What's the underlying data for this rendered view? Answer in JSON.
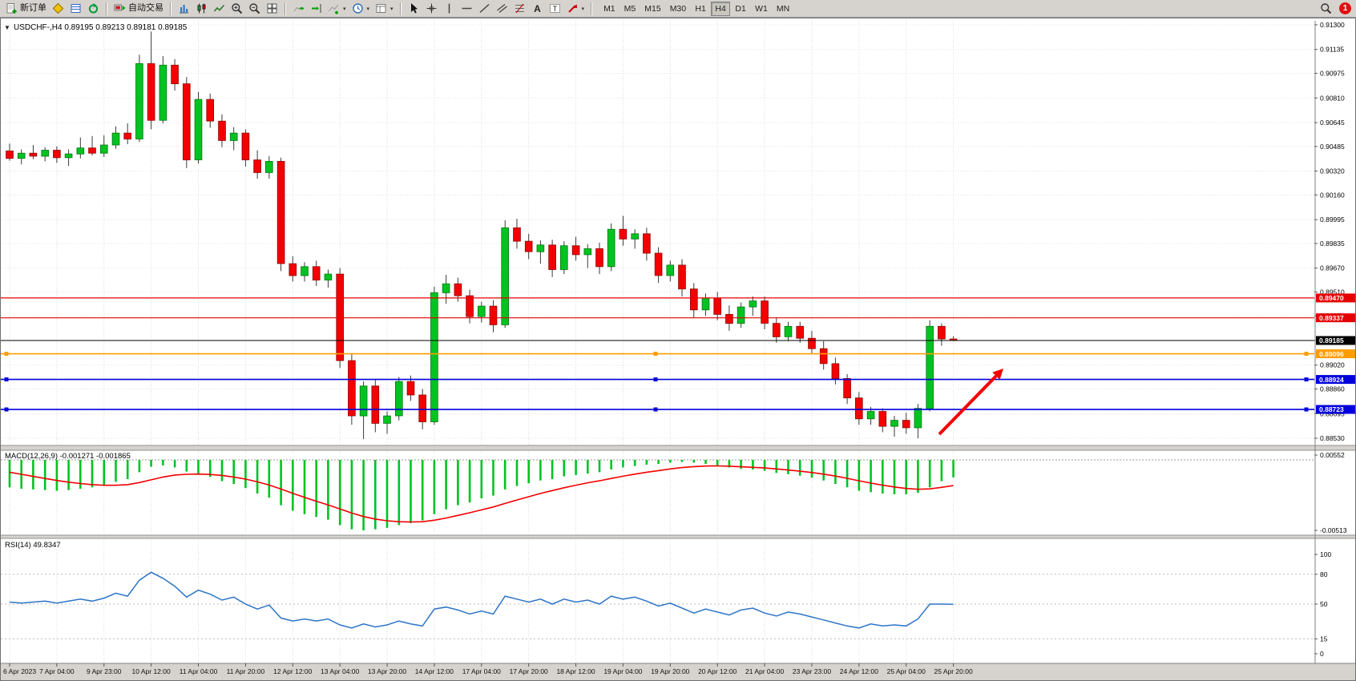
{
  "toolbar": {
    "new_order_label": "新订单",
    "autotrading_label": "自动交易",
    "timeframes": [
      "M1",
      "M5",
      "M15",
      "M30",
      "H1",
      "H4",
      "D1",
      "W1",
      "MN"
    ],
    "active_timeframe": "H4",
    "notification_count": "1",
    "dropdown_caret": "▾",
    "symbol_menu_icon": "▼"
  },
  "chart": {
    "symbol_header": "USDCHF-,H4  0.89195 0.89213 0.89181 0.89185",
    "macd_header": "MACD(12,26,9) -0.001271 -0.001865",
    "rsi_header": "RSI(14) 49.8347"
  },
  "chart_data": {
    "type": "candlestick",
    "symbol": "USDCHF-",
    "timeframe": "H4",
    "ohlc_readout": {
      "open": "0.89195",
      "high": "0.89213",
      "low": "0.89181",
      "close": "0.89185"
    },
    "colors": {
      "up": "#00C321",
      "up_border": "#00770f",
      "down": "#F40000",
      "down_border": "#8f0000",
      "wick": "#3a3a3a"
    },
    "price_axis_ticks": [
      "0.91300",
      "0.91135",
      "0.90975",
      "0.90810",
      "0.90645",
      "0.90485",
      "0.90320",
      "0.90160",
      "0.89995",
      "0.89835",
      "0.89670",
      "0.89510",
      "0.89350",
      "0.89185",
      "0.89020",
      "0.88860",
      "0.88695",
      "0.88530"
    ],
    "time_labels": [
      "6 Apr 2023",
      "7 Apr 04:00",
      "9 Apr 23:00",
      "10 Apr 12:00",
      "11 Apr 04:00",
      "11 Apr 20:00",
      "12 Apr 12:00",
      "13 Apr 04:00",
      "13 Apr 20:00",
      "14 Apr 12:00",
      "17 Apr 04:00",
      "17 Apr 20:00",
      "18 Apr 12:00",
      "19 Apr 04:00",
      "19 Apr 20:00",
      "20 Apr 12:00",
      "21 Apr 04:00",
      "23 Apr 23:00",
      "24 Apr 12:00",
      "25 Apr 04:00",
      "25 Apr 20:00"
    ],
    "candles": [
      [
        0.90455,
        0.90505,
        0.9039,
        0.90405
      ],
      [
        0.90405,
        0.90465,
        0.90365,
        0.9044
      ],
      [
        0.9044,
        0.90495,
        0.904,
        0.9042
      ],
      [
        0.9042,
        0.9048,
        0.90385,
        0.9046
      ],
      [
        0.9046,
        0.90485,
        0.90375,
        0.9041
      ],
      [
        0.9041,
        0.90465,
        0.90355,
        0.90435
      ],
      [
        0.90435,
        0.90545,
        0.90405,
        0.90475
      ],
      [
        0.90475,
        0.90555,
        0.90425,
        0.9044
      ],
      [
        0.9044,
        0.9056,
        0.90415,
        0.90495
      ],
      [
        0.90495,
        0.9062,
        0.9047,
        0.90575
      ],
      [
        0.90575,
        0.9064,
        0.905,
        0.90535
      ],
      [
        0.90535,
        0.911,
        0.90515,
        0.9104
      ],
      [
        0.9104,
        0.91255,
        0.906,
        0.9066
      ],
      [
        0.9066,
        0.9109,
        0.9064,
        0.9103
      ],
      [
        0.9103,
        0.9107,
        0.9086,
        0.90905
      ],
      [
        0.90905,
        0.9095,
        0.9034,
        0.90395
      ],
      [
        0.90395,
        0.9085,
        0.9037,
        0.908
      ],
      [
        0.908,
        0.9084,
        0.9061,
        0.90655
      ],
      [
        0.90655,
        0.907,
        0.9048,
        0.90525
      ],
      [
        0.90525,
        0.90615,
        0.9046,
        0.90575
      ],
      [
        0.90575,
        0.906,
        0.9035,
        0.90395
      ],
      [
        0.90395,
        0.9046,
        0.9027,
        0.9031
      ],
      [
        0.9031,
        0.9042,
        0.9027,
        0.90385
      ],
      [
        0.90385,
        0.9041,
        0.8965,
        0.897
      ],
      [
        0.897,
        0.8975,
        0.8958,
        0.8962
      ],
      [
        0.8962,
        0.8971,
        0.8958,
        0.8968
      ],
      [
        0.8968,
        0.8972,
        0.8955,
        0.8959
      ],
      [
        0.8959,
        0.8966,
        0.8954,
        0.8963
      ],
      [
        0.8963,
        0.8967,
        0.89,
        0.8905
      ],
      [
        0.8905,
        0.891,
        0.8862,
        0.8868
      ],
      [
        0.8868,
        0.8891,
        0.88525,
        0.8888
      ],
      [
        0.8888,
        0.8892,
        0.8857,
        0.8863
      ],
      [
        0.8863,
        0.8871,
        0.8856,
        0.8868
      ],
      [
        0.8868,
        0.8894,
        0.8865,
        0.8891
      ],
      [
        0.8891,
        0.8895,
        0.8878,
        0.8882
      ],
      [
        0.8882,
        0.8886,
        0.8859,
        0.8864
      ],
      [
        0.8864,
        0.89545,
        0.8862,
        0.89505
      ],
      [
        0.89505,
        0.89625,
        0.8943,
        0.89565
      ],
      [
        0.89565,
        0.89605,
        0.89445,
        0.89485
      ],
      [
        0.89485,
        0.89525,
        0.893,
        0.89345
      ],
      [
        0.89345,
        0.89445,
        0.89305,
        0.89415
      ],
      [
        0.89415,
        0.89455,
        0.8924,
        0.8929
      ],
      [
        0.8929,
        0.8999,
        0.8927,
        0.8994
      ],
      [
        0.8994,
        0.9,
        0.898,
        0.8985
      ],
      [
        0.8985,
        0.899,
        0.8973,
        0.8978
      ],
      [
        0.8978,
        0.89855,
        0.897,
        0.89825
      ],
      [
        0.89825,
        0.8986,
        0.8961,
        0.8966
      ],
      [
        0.8966,
        0.8985,
        0.8963,
        0.8982
      ],
      [
        0.8982,
        0.8988,
        0.8972,
        0.8976
      ],
      [
        0.8976,
        0.8983,
        0.8967,
        0.898
      ],
      [
        0.898,
        0.8984,
        0.8963,
        0.8968
      ],
      [
        0.8968,
        0.8997,
        0.8965,
        0.8993
      ],
      [
        0.8993,
        0.9002,
        0.8982,
        0.89865
      ],
      [
        0.89865,
        0.8993,
        0.898,
        0.899
      ],
      [
        0.899,
        0.8994,
        0.8972,
        0.8977
      ],
      [
        0.8977,
        0.8981,
        0.8957,
        0.8962
      ],
      [
        0.8962,
        0.8972,
        0.8958,
        0.8969
      ],
      [
        0.8969,
        0.8973,
        0.8948,
        0.8953
      ],
      [
        0.8953,
        0.8957,
        0.8934,
        0.8939
      ],
      [
        0.8939,
        0.895,
        0.8935,
        0.8947
      ],
      [
        0.8947,
        0.8951,
        0.8932,
        0.8936
      ],
      [
        0.8936,
        0.8942,
        0.8925,
        0.893
      ],
      [
        0.893,
        0.8944,
        0.8927,
        0.8941
      ],
      [
        0.8941,
        0.8948,
        0.8935,
        0.8945
      ],
      [
        0.8945,
        0.8948,
        0.8926,
        0.893
      ],
      [
        0.893,
        0.8934,
        0.8917,
        0.8921
      ],
      [
        0.8921,
        0.8931,
        0.8918,
        0.8928
      ],
      [
        0.8928,
        0.8931,
        0.8917,
        0.892
      ],
      [
        0.892,
        0.8925,
        0.891,
        0.8913
      ],
      [
        0.8913,
        0.8918,
        0.8899,
        0.8903
      ],
      [
        0.8903,
        0.8907,
        0.8889,
        0.8893
      ],
      [
        0.8893,
        0.8896,
        0.8876,
        0.888
      ],
      [
        0.888,
        0.8884,
        0.8862,
        0.8866
      ],
      [
        0.8866,
        0.8874,
        0.8862,
        0.8871
      ],
      [
        0.8871,
        0.8873,
        0.8857,
        0.8861
      ],
      [
        0.8861,
        0.8868,
        0.8854,
        0.8865
      ],
      [
        0.8865,
        0.887,
        0.8856,
        0.886
      ],
      [
        0.886,
        0.8876,
        0.8853,
        0.8873
      ],
      [
        0.8873,
        0.8932,
        0.8871,
        0.8928
      ],
      [
        0.8928,
        0.893,
        0.8915,
        0.89195
      ],
      [
        0.89195,
        0.89213,
        0.89181,
        0.89185
      ]
    ],
    "hlines": [
      {
        "name": "resistance-1",
        "label": "0.89470",
        "price": 0.8947,
        "color": "#E60000",
        "width": 1.2,
        "handles": false
      },
      {
        "name": "resistance-2",
        "label": "0.89337",
        "price": 0.89337,
        "color": "#E60000",
        "width": 1.2,
        "handles": false
      },
      {
        "name": "current-price",
        "label": "0.89185",
        "price": 0.89185,
        "color": "#000000",
        "width": 1,
        "handles": false
      },
      {
        "name": "orange-level",
        "label": "0.89096",
        "price": 0.89096,
        "color": "#FF9C00",
        "width": 1.6,
        "handles": true
      },
      {
        "name": "support-1",
        "label": "0.88924",
        "price": 0.88924,
        "color": "#0000DC",
        "width": 1.6,
        "handles": true
      },
      {
        "name": "support-2",
        "label": "0.88723",
        "price": 0.88723,
        "color": "#0000DC",
        "width": 1.6,
        "handles": true
      }
    ],
    "annotation_arrow": {
      "from": [
        1172,
        520
      ],
      "to": [
        1252,
        438
      ],
      "color": "#F40000"
    },
    "macd": {
      "name": "MACD(12,26,9)",
      "value": "-0.001271",
      "signal_value": "-0.001865",
      "hist_color": "#00C321",
      "signal_color": "#F40000",
      "axis_labels": [
        "0.00552",
        "-0.00513"
      ],
      "values": [
        -0.002,
        -0.0021,
        -0.00215,
        -0.0022,
        -0.00225,
        -0.0022,
        -0.0021,
        -0.002,
        -0.00185,
        -0.0016,
        -0.0014,
        -0.0009,
        -0.0005,
        -0.0004,
        -0.00055,
        -0.00085,
        -0.001,
        -0.00125,
        -0.00155,
        -0.00175,
        -0.00205,
        -0.00245,
        -0.00275,
        -0.0033,
        -0.0037,
        -0.00395,
        -0.00415,
        -0.00435,
        -0.00475,
        -0.00505,
        -0.00513,
        -0.00505,
        -0.00495,
        -0.00475,
        -0.0046,
        -0.0044,
        -0.00395,
        -0.0036,
        -0.0033,
        -0.0031,
        -0.0028,
        -0.0026,
        -0.00215,
        -0.0019,
        -0.0017,
        -0.0015,
        -0.0014,
        -0.0012,
        -0.0011,
        -0.001,
        -0.0009,
        -0.0007,
        -0.00055,
        -0.00045,
        -0.00035,
        -0.0003,
        -0.0002,
        -0.00015,
        -0.0002,
        -0.0003,
        -0.0004,
        -0.00055,
        -0.00065,
        -0.0007,
        -0.0008,
        -0.00095,
        -0.00105,
        -0.00115,
        -0.0013,
        -0.0015,
        -0.00175,
        -0.002,
        -0.00225,
        -0.00235,
        -0.00245,
        -0.0025,
        -0.0025,
        -0.0024,
        -0.002,
        -0.00155,
        -0.00127
      ],
      "signal": [
        -0.0009,
        -0.00105,
        -0.0012,
        -0.00135,
        -0.0015,
        -0.00162,
        -0.00172,
        -0.0018,
        -0.00185,
        -0.00185,
        -0.0018,
        -0.00165,
        -0.00145,
        -0.00125,
        -0.0011,
        -0.00105,
        -0.00103,
        -0.00106,
        -0.00113,
        -0.00125,
        -0.0014,
        -0.0016,
        -0.00183,
        -0.00212,
        -0.00243,
        -0.00273,
        -0.00301,
        -0.00328,
        -0.00357,
        -0.00387,
        -0.00412,
        -0.00431,
        -0.00443,
        -0.0045,
        -0.00452,
        -0.0045,
        -0.00439,
        -0.00423,
        -0.00404,
        -0.00385,
        -0.00364,
        -0.00343,
        -0.00317,
        -0.00292,
        -0.00268,
        -0.00244,
        -0.00223,
        -0.00203,
        -0.00184,
        -0.00167,
        -0.00152,
        -0.00135,
        -0.00119,
        -0.00104,
        -0.0009,
        -0.00078,
        -0.00066,
        -0.00056,
        -0.00049,
        -0.00045,
        -0.00044,
        -0.00046,
        -0.0005,
        -0.00054,
        -0.00059,
        -0.00066,
        -0.00074,
        -0.00082,
        -0.00092,
        -0.00104,
        -0.00118,
        -0.00134,
        -0.00152,
        -0.00169,
        -0.00184,
        -0.00197,
        -0.00208,
        -0.00214,
        -0.00211,
        -0.002,
        -0.00187
      ]
    },
    "rsi": {
      "name": "RSI(14)",
      "current": "49.8347",
      "line_color": "#2E74C8",
      "levels": [
        100,
        80,
        50,
        15,
        0
      ],
      "values": [
        52,
        51,
        52,
        53,
        51,
        53,
        55,
        53,
        56,
        61,
        58,
        74,
        82,
        76,
        68,
        57,
        64,
        60,
        54,
        57,
        50,
        45,
        49,
        36,
        33,
        35,
        33,
        35,
        29,
        26,
        30,
        27,
        29,
        33,
        30,
        28,
        45,
        47,
        44,
        40,
        43,
        40,
        58,
        55,
        52,
        55,
        50,
        55,
        52,
        54,
        50,
        58,
        55,
        57,
        53,
        48,
        51,
        46,
        41,
        45,
        42,
        39,
        44,
        46,
        41,
        38,
        42,
        40,
        37,
        34,
        31,
        28,
        26,
        30,
        28,
        29,
        28,
        35,
        50,
        50,
        49.8
      ]
    }
  }
}
